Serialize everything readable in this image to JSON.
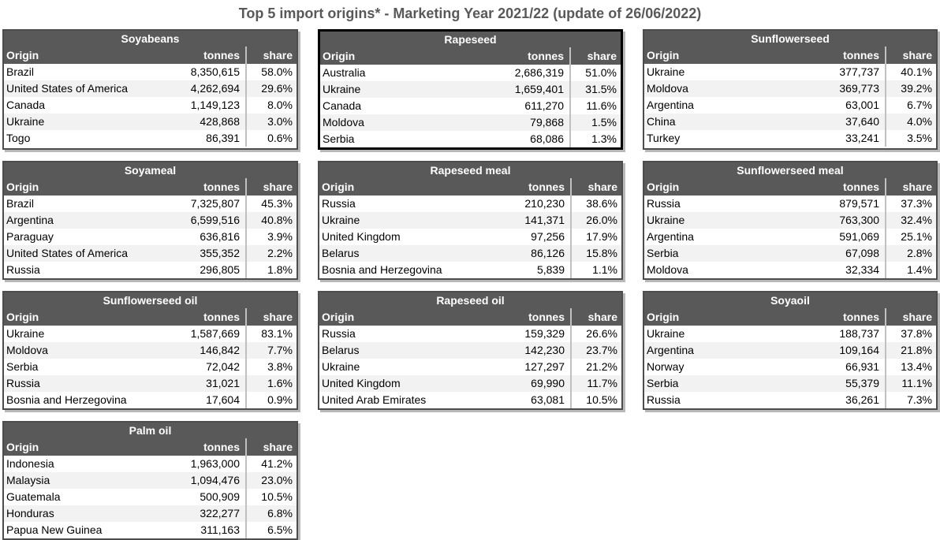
{
  "page": {
    "title": "Top 5 import origins* - Marketing Year 2021/22 (update of 26/06/2022)"
  },
  "columns": {
    "origin": "Origin",
    "tonnes": "tonnes",
    "share": "share"
  },
  "colors": {
    "header_bg": "#595959",
    "header_text": "#ffffff",
    "row_stripe": "#f2f2f2",
    "table_border": "#4d4d4d",
    "selected_border": "#000000",
    "divider": "#c0c0c0",
    "title_text": "#595959"
  },
  "chart_data": {
    "type": "table",
    "title": "Top 5 import origins* - Marketing Year 2021/22 (update of 26/06/2022)",
    "tables": [
      {
        "name": "Soyabeans",
        "selected": false,
        "rows": [
          {
            "origin": "Brazil",
            "tonnes": "8,350,615",
            "share": "58.0%"
          },
          {
            "origin": "United States of America",
            "tonnes": "4,262,694",
            "share": "29.6%"
          },
          {
            "origin": "Canada",
            "tonnes": "1,149,123",
            "share": "8.0%"
          },
          {
            "origin": "Ukraine",
            "tonnes": "428,868",
            "share": "3.0%"
          },
          {
            "origin": "Togo",
            "tonnes": "86,391",
            "share": "0.6%"
          }
        ]
      },
      {
        "name": "Rapeseed",
        "selected": true,
        "rows": [
          {
            "origin": "Australia",
            "tonnes": "2,686,319",
            "share": "51.0%"
          },
          {
            "origin": "Ukraine",
            "tonnes": "1,659,401",
            "share": "31.5%"
          },
          {
            "origin": "Canada",
            "tonnes": "611,270",
            "share": "11.6%"
          },
          {
            "origin": "Moldova",
            "tonnes": "79,868",
            "share": "1.5%"
          },
          {
            "origin": "Serbia",
            "tonnes": "68,086",
            "share": "1.3%"
          }
        ]
      },
      {
        "name": "Sunflowerseed",
        "selected": false,
        "rows": [
          {
            "origin": "Ukraine",
            "tonnes": "377,737",
            "share": "40.1%"
          },
          {
            "origin": "Moldova",
            "tonnes": "369,773",
            "share": "39.2%"
          },
          {
            "origin": "Argentina",
            "tonnes": "63,001",
            "share": "6.7%"
          },
          {
            "origin": "China",
            "tonnes": "37,640",
            "share": "4.0%"
          },
          {
            "origin": "Turkey",
            "tonnes": "33,241",
            "share": "3.5%"
          }
        ]
      },
      {
        "name": "Soyameal",
        "selected": false,
        "rows": [
          {
            "origin": "Brazil",
            "tonnes": "7,325,807",
            "share": "45.3%"
          },
          {
            "origin": "Argentina",
            "tonnes": "6,599,516",
            "share": "40.8%"
          },
          {
            "origin": "Paraguay",
            "tonnes": "636,816",
            "share": "3.9%"
          },
          {
            "origin": "United States of America",
            "tonnes": "355,352",
            "share": "2.2%"
          },
          {
            "origin": "Russia",
            "tonnes": "296,805",
            "share": "1.8%"
          }
        ]
      },
      {
        "name": "Rapeseed meal",
        "selected": false,
        "rows": [
          {
            "origin": "Russia",
            "tonnes": "210,230",
            "share": "38.6%"
          },
          {
            "origin": "Ukraine",
            "tonnes": "141,371",
            "share": "26.0%"
          },
          {
            "origin": "United Kingdom",
            "tonnes": "97,256",
            "share": "17.9%"
          },
          {
            "origin": "Belarus",
            "tonnes": "86,126",
            "share": "15.8%"
          },
          {
            "origin": "Bosnia and Herzegovina",
            "tonnes": "5,839",
            "share": "1.1%"
          }
        ]
      },
      {
        "name": "Sunflowerseed meal",
        "selected": false,
        "rows": [
          {
            "origin": "Russia",
            "tonnes": "879,571",
            "share": "37.3%"
          },
          {
            "origin": "Ukraine",
            "tonnes": "763,300",
            "share": "32.4%"
          },
          {
            "origin": "Argentina",
            "tonnes": "591,069",
            "share": "25.1%"
          },
          {
            "origin": "Serbia",
            "tonnes": "67,098",
            "share": "2.8%"
          },
          {
            "origin": "Moldova",
            "tonnes": "32,334",
            "share": "1.4%"
          }
        ]
      },
      {
        "name": "Sunflowerseed oil",
        "selected": false,
        "rows": [
          {
            "origin": "Ukraine",
            "tonnes": "1,587,669",
            "share": "83.1%"
          },
          {
            "origin": "Moldova",
            "tonnes": "146,842",
            "share": "7.7%"
          },
          {
            "origin": "Serbia",
            "tonnes": "72,042",
            "share": "3.8%"
          },
          {
            "origin": "Russia",
            "tonnes": "31,021",
            "share": "1.6%"
          },
          {
            "origin": "Bosnia and Herzegovina",
            "tonnes": "17,604",
            "share": "0.9%"
          }
        ]
      },
      {
        "name": "Rapeseed oil",
        "selected": false,
        "rows": [
          {
            "origin": "Russia",
            "tonnes": "159,329",
            "share": "26.6%"
          },
          {
            "origin": "Belarus",
            "tonnes": "142,230",
            "share": "23.7%"
          },
          {
            "origin": "Ukraine",
            "tonnes": "127,297",
            "share": "21.2%"
          },
          {
            "origin": "United Kingdom",
            "tonnes": "69,990",
            "share": "11.7%"
          },
          {
            "origin": "United Arab Emirates",
            "tonnes": "63,081",
            "share": "10.5%"
          }
        ]
      },
      {
        "name": "Soyaoil",
        "selected": false,
        "rows": [
          {
            "origin": "Ukraine",
            "tonnes": "188,737",
            "share": "37.8%"
          },
          {
            "origin": "Argentina",
            "tonnes": "109,164",
            "share": "21.8%"
          },
          {
            "origin": "Norway",
            "tonnes": "66,931",
            "share": "13.4%"
          },
          {
            "origin": "Serbia",
            "tonnes": "55,379",
            "share": "11.1%"
          },
          {
            "origin": "Russia",
            "tonnes": "36,261",
            "share": "7.3%"
          }
        ]
      },
      {
        "name": "Palm oil",
        "selected": false,
        "rows": [
          {
            "origin": "Indonesia",
            "tonnes": "1,963,000",
            "share": "41.2%"
          },
          {
            "origin": "Malaysia",
            "tonnes": "1,094,476",
            "share": "23.0%"
          },
          {
            "origin": "Guatemala",
            "tonnes": "500,909",
            "share": "10.5%"
          },
          {
            "origin": "Honduras",
            "tonnes": "322,277",
            "share": "6.8%"
          },
          {
            "origin": "Papua New Guinea",
            "tonnes": "311,163",
            "share": "6.5%"
          }
        ]
      }
    ]
  }
}
